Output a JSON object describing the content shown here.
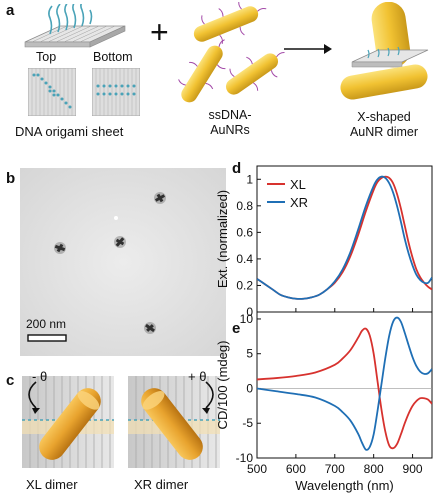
{
  "panels": {
    "a": {
      "letter": "a",
      "top_label": "Top",
      "bottom_label": "Bottom",
      "origami_caption": "DNA origami sheet",
      "plus_sign": "+",
      "aunr_caption_line1": "ssDNA-",
      "aunr_caption_line2": "AuNRs",
      "dimer_caption_line1": "X-shaped",
      "dimer_caption_line2": "AuNR dimer"
    },
    "b": {
      "letter": "b",
      "scale_bar_label": "200 nm"
    },
    "c": {
      "letter": "c",
      "xl_angle": "- θ",
      "xr_angle": "+ θ",
      "xl_caption": "XL dimer",
      "xr_caption": "XR dimer"
    },
    "d": {
      "letter": "d"
    },
    "e": {
      "letter": "e"
    }
  },
  "colors": {
    "xl": "#d7322e",
    "xr": "#1f6fb5",
    "gold": "#f1c232",
    "dna": "#4aa3b8"
  },
  "chart_data": [
    {
      "type": "line",
      "panel": "d",
      "ylabel": "Ext. (normalized)",
      "xlim": [
        500,
        950
      ],
      "ylim": [
        0,
        1.1
      ],
      "yticks": [
        0,
        0.2,
        0.4,
        0.6,
        0.8,
        1
      ],
      "ytick_labels": [
        "0",
        "0.2",
        "0.4",
        "0.6",
        "0.8",
        "1"
      ],
      "legend": "top-left",
      "series": [
        {
          "name": "XL",
          "color": "#d7322e",
          "x": [
            500,
            520,
            540,
            560,
            580,
            600,
            620,
            640,
            660,
            680,
            700,
            720,
            740,
            760,
            780,
            800,
            810,
            820,
            830,
            840,
            850,
            860,
            870,
            880,
            890,
            900,
            910,
            920,
            930,
            940,
            950
          ],
          "y": [
            0.25,
            0.21,
            0.17,
            0.13,
            0.11,
            0.1,
            0.1,
            0.11,
            0.13,
            0.17,
            0.22,
            0.3,
            0.42,
            0.58,
            0.76,
            0.92,
            0.98,
            1.01,
            1.02,
            1.01,
            0.97,
            0.89,
            0.78,
            0.65,
            0.52,
            0.41,
            0.32,
            0.26,
            0.22,
            0.19,
            0.17
          ]
        },
        {
          "name": "XR",
          "color": "#1f6fb5",
          "x": [
            500,
            520,
            540,
            560,
            580,
            600,
            620,
            640,
            660,
            680,
            700,
            720,
            740,
            760,
            780,
            800,
            810,
            820,
            830,
            840,
            850,
            860,
            870,
            880,
            890,
            900,
            910,
            920,
            930,
            940,
            950
          ],
          "y": [
            0.25,
            0.21,
            0.17,
            0.13,
            0.11,
            0.1,
            0.1,
            0.11,
            0.13,
            0.17,
            0.23,
            0.32,
            0.45,
            0.62,
            0.8,
            0.95,
            1.0,
            1.02,
            1.01,
            0.97,
            0.9,
            0.8,
            0.68,
            0.55,
            0.44,
            0.35,
            0.28,
            0.24,
            0.22,
            0.22,
            0.26
          ]
        }
      ]
    },
    {
      "type": "line",
      "panel": "e",
      "ylabel": "CD/100 (mdeg)",
      "xlabel": "Wavelength (nm)",
      "xlim": [
        500,
        950
      ],
      "ylim": [
        -10,
        11
      ],
      "xticks": [
        500,
        600,
        700,
        800,
        900
      ],
      "yticks": [
        -10,
        -5,
        0,
        5,
        10
      ],
      "series": [
        {
          "name": "XL",
          "color": "#d7322e",
          "x": [
            500,
            550,
            600,
            650,
            700,
            720,
            740,
            760,
            770,
            780,
            790,
            800,
            810,
            820,
            830,
            840,
            850,
            860,
            870,
            880,
            890,
            900,
            910,
            920,
            930,
            940,
            950
          ],
          "y": [
            1.3,
            1.5,
            1.8,
            2.3,
            3.4,
            4.3,
            5.5,
            7.3,
            8.3,
            8.6,
            7.6,
            5.0,
            1.0,
            -3.0,
            -6.2,
            -8.2,
            -8.6,
            -8.0,
            -6.6,
            -5.0,
            -3.6,
            -2.5,
            -1.8,
            -1.4,
            -1.4,
            -1.6,
            -2.2
          ]
        },
        {
          "name": "XR",
          "color": "#1f6fb5",
          "x": [
            500,
            550,
            600,
            650,
            700,
            720,
            740,
            760,
            770,
            780,
            790,
            800,
            810,
            820,
            830,
            840,
            850,
            860,
            870,
            880,
            890,
            900,
            910,
            920,
            930,
            940,
            950
          ],
          "y": [
            0.0,
            -0.4,
            -0.8,
            -1.3,
            -2.5,
            -3.4,
            -4.6,
            -6.5,
            -7.8,
            -8.8,
            -8.4,
            -6.6,
            -3.2,
            0.6,
            4.4,
            7.6,
            9.6,
            10.2,
            9.6,
            8.0,
            6.2,
            4.5,
            3.2,
            2.4,
            2.1,
            2.2,
            2.8
          ]
        }
      ]
    }
  ]
}
